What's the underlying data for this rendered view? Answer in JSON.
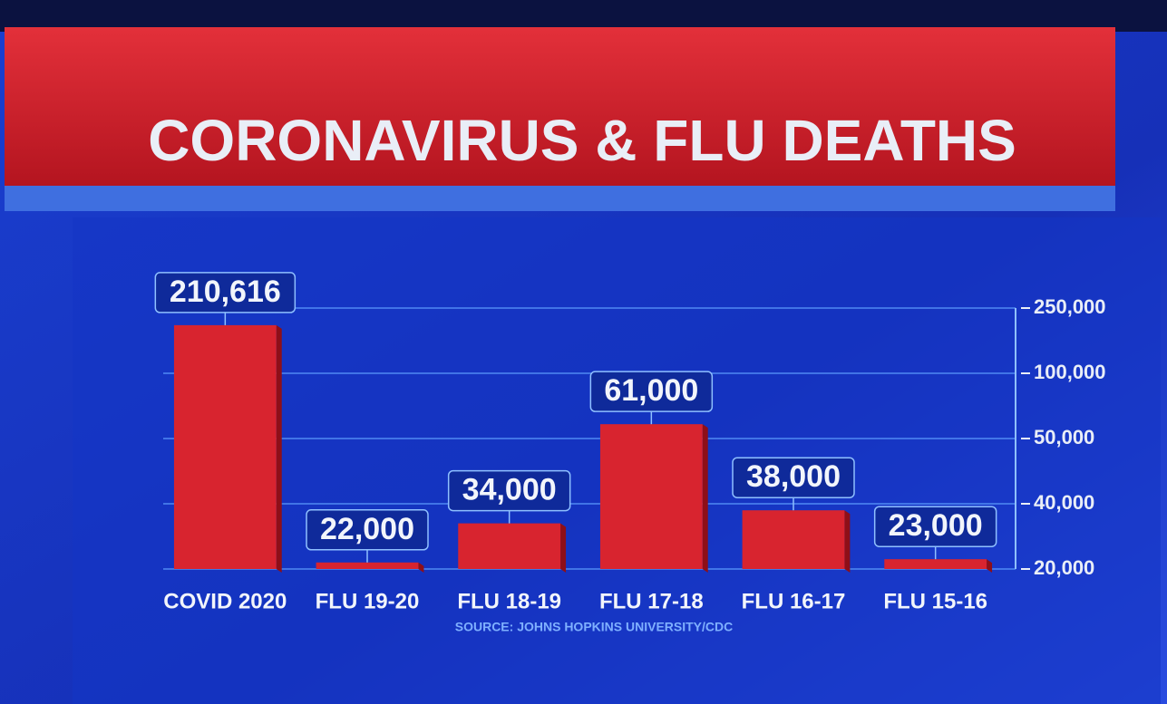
{
  "chart_data": {
    "type": "bar",
    "title": "CORONAVIRUS & FLU DEATHS",
    "source": "SOURCE: JOHNS HOPKINS UNIVERSITY/CDC",
    "categories": [
      "COVID 2020",
      "FLU 19-20",
      "FLU 18-19",
      "FLU 17-18",
      "FLU 16-17",
      "FLU 15-16"
    ],
    "values": [
      210616,
      22000,
      34000,
      61000,
      38000,
      23000
    ],
    "value_labels": [
      "210,616",
      "22,000",
      "34,000",
      "61,000",
      "38,000",
      "23,000"
    ],
    "color": "#d8242f",
    "ylim": [
      20000,
      250000
    ],
    "yticks": [
      {
        "value": 20000,
        "label": "20,000"
      },
      {
        "value": 40000,
        "label": "40,000"
      },
      {
        "value": 50000,
        "label": "50,000"
      },
      {
        "value": 100000,
        "label": "100,000"
      },
      {
        "value": 250000,
        "label": "250,000"
      }
    ],
    "y_scale": "piecewise",
    "y_axis_side": "right",
    "grid": true
  }
}
